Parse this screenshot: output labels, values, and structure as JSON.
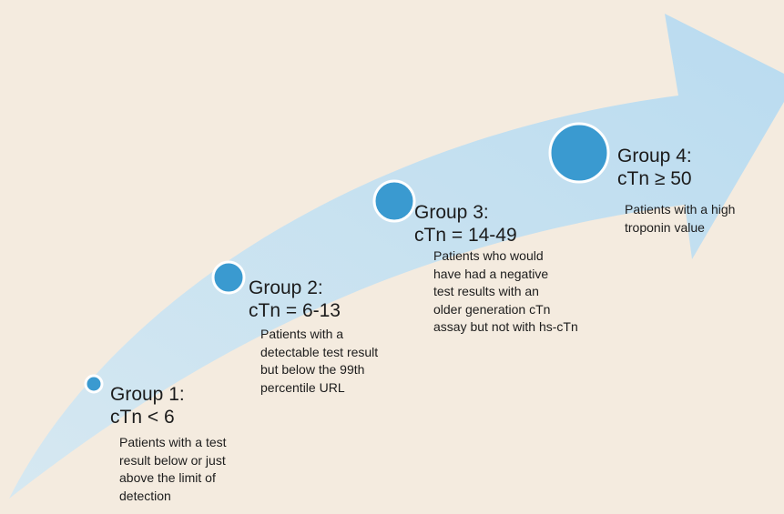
{
  "groups": [
    {
      "title": "Group 1:",
      "range": "cTn < 6",
      "description": [
        "Patients with a test",
        "result below or just",
        "above the limit of",
        "detection"
      ]
    },
    {
      "title": "Group 2:",
      "range": "cTn = 6-13",
      "description": [
        "Patients with a",
        "detectable test result",
        "but below the 99th",
        "percentile URL"
      ]
    },
    {
      "title": "Group 3:",
      "range": "cTn = 14-49",
      "description": [
        "Patients who would",
        "have had a negative",
        "test results with an",
        "older generation cTn",
        "assay but not with hs-cTn"
      ]
    },
    {
      "title": "Group 4:",
      "range": "cTn ≥ 50",
      "description": [
        "Patients with a high",
        "troponin value"
      ]
    }
  ]
}
